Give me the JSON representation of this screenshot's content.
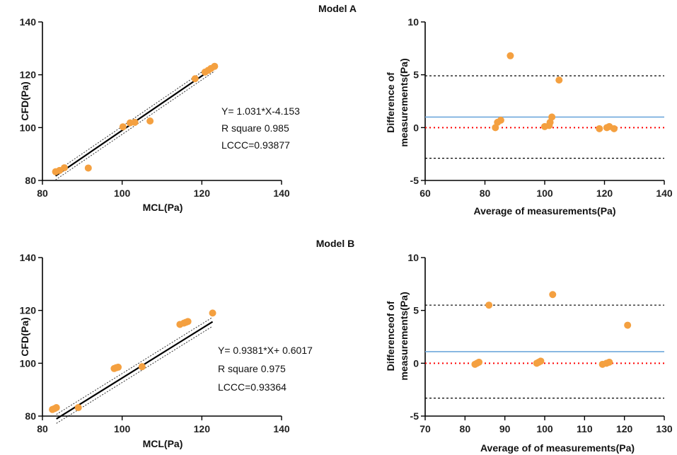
{
  "chart_data": [
    {
      "type": "scatter",
      "id": "a-regression",
      "title": "",
      "xlabel": "MCL(Pa)",
      "ylabel": "CFD(Pa)",
      "xlim": [
        80,
        140
      ],
      "ylim": [
        80,
        140
      ],
      "xticks": [
        80,
        100,
        120,
        140
      ],
      "yticks": [
        80,
        100,
        120,
        140
      ],
      "points": [
        [
          83.3,
          83.3
        ],
        [
          84.3,
          83.8
        ],
        [
          85.5,
          84.8
        ],
        [
          91.5,
          84.7
        ],
        [
          100.2,
          100.3
        ],
        [
          102.0,
          101.8
        ],
        [
          103.2,
          102.0
        ],
        [
          107.0,
          102.5
        ],
        [
          118.3,
          118.5
        ],
        [
          120.8,
          121.0
        ],
        [
          121.6,
          121.7
        ],
        [
          122.3,
          122.4
        ],
        [
          123.2,
          123.2
        ]
      ],
      "fit": {
        "slope": 1.031,
        "intercept": -4.153,
        "xrange": [
          83.3,
          123.2
        ],
        "band": 1.5
      },
      "annotations": [
        "Y= 1.031*X-4.153",
        "R square 0.985",
        "LCCC=0.93877"
      ]
    },
    {
      "type": "scatter",
      "id": "a-bland-altman",
      "title": "Model A",
      "xlabel": "Average of measurements(Pa)",
      "ylabel": "Difference of measurements(Pa)",
      "xlim": [
        60,
        140
      ],
      "ylim": [
        -5,
        10
      ],
      "xticks": [
        60,
        80,
        100,
        120,
        140
      ],
      "yticks": [
        -5,
        0,
        5,
        10
      ],
      "points": [
        [
          83.5,
          0.0
        ],
        [
          84.2,
          0.5
        ],
        [
          85.3,
          0.7
        ],
        [
          88.5,
          6.8
        ],
        [
          100.0,
          0.1
        ],
        [
          101.5,
          0.2
        ],
        [
          101.8,
          0.5
        ],
        [
          102.4,
          1.0
        ],
        [
          104.8,
          4.5
        ],
        [
          118.3,
          -0.1
        ],
        [
          120.8,
          0.0
        ],
        [
          121.6,
          0.1
        ],
        [
          123.2,
          -0.1
        ]
      ],
      "mean_bias": 1.0,
      "upper_loa": 4.9,
      "lower_loa": -2.9,
      "zero_line": 0,
      "colors": {
        "bias": "#6fa8dc",
        "zero": "#ff0000",
        "loa": "#000000"
      }
    },
    {
      "type": "scatter",
      "id": "b-regression",
      "title": "",
      "xlabel": "MCL(Pa)",
      "ylabel": "CFD(Pa)",
      "xlim": [
        80,
        140
      ],
      "ylim": [
        80,
        140
      ],
      "xticks": [
        80,
        100,
        120,
        140
      ],
      "yticks": [
        80,
        100,
        120,
        140
      ],
      "points": [
        [
          82.5,
          82.5
        ],
        [
          83.0,
          82.8
        ],
        [
          83.5,
          83.2
        ],
        [
          89.0,
          83.2
        ],
        [
          98.0,
          98.0
        ],
        [
          98.5,
          98.3
        ],
        [
          99.0,
          98.5
        ],
        [
          105.0,
          98.7
        ],
        [
          114.5,
          114.7
        ],
        [
          115.5,
          115.2
        ],
        [
          116.0,
          115.5
        ],
        [
          116.5,
          115.8
        ],
        [
          122.7,
          119.0
        ]
      ],
      "fit": {
        "slope": 0.9381,
        "intercept": 0.6017,
        "xrange": [
          83.5,
          122.7
        ],
        "band": 1.7
      },
      "annotations": [
        "Y= 0.9381*X+ 0.6017",
        "R square 0.975",
        "LCCC=0.93364"
      ]
    },
    {
      "type": "scatter",
      "id": "b-bland-altman",
      "title": "Model B",
      "xlabel": "Average of of measurements(Pa)",
      "ylabel": "Differenceof of measurements(Pa)",
      "xlim": [
        70,
        130
      ],
      "ylim": [
        -5,
        10
      ],
      "xticks": [
        70,
        80,
        90,
        100,
        110,
        120,
        130
      ],
      "yticks": [
        -5,
        0,
        5,
        10
      ],
      "points": [
        [
          82.5,
          -0.1
        ],
        [
          83.0,
          0.0
        ],
        [
          83.5,
          0.1
        ],
        [
          86.0,
          5.5
        ],
        [
          98.0,
          0.0
        ],
        [
          98.5,
          0.1
        ],
        [
          99.0,
          0.2
        ],
        [
          102.0,
          6.5
        ],
        [
          114.5,
          -0.1
        ],
        [
          115.5,
          0.0
        ],
        [
          116.2,
          0.1
        ],
        [
          120.8,
          3.6
        ]
      ],
      "mean_bias": 1.1,
      "upper_loa": 5.5,
      "lower_loa": -3.3,
      "zero_line": 0,
      "colors": {
        "bias": "#6fa8dc",
        "zero": "#ff0000",
        "loa": "#000000"
      }
    }
  ],
  "colors": {
    "point": "#f4a040",
    "axis": "#000000",
    "fit": "#000000"
  }
}
